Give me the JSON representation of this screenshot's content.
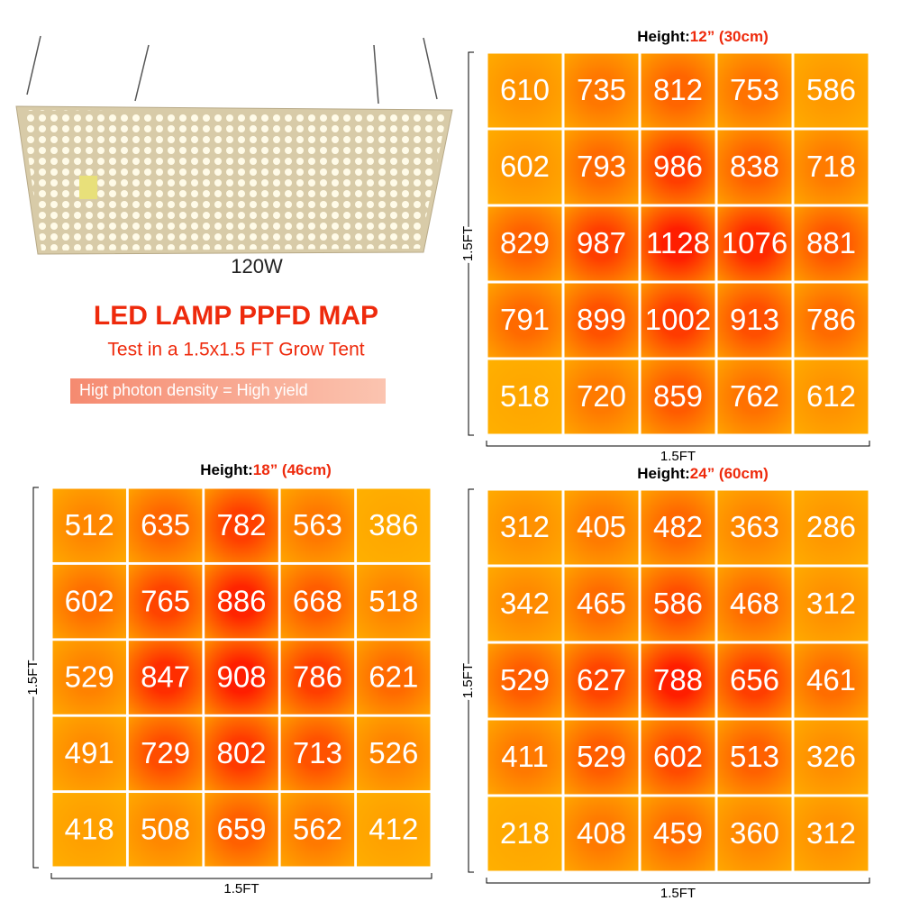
{
  "product": {
    "wattage": "120W"
  },
  "header": {
    "title": "LED LAMP PPFD MAP",
    "subtitle": "Test in a 1.5x1.5 FT Grow Tent",
    "tagline": "Higt photon density = High yield"
  },
  "maps": [
    {
      "label": "Height:",
      "height": "12” (30cm)",
      "x_label": "1.5FT",
      "y_label": "1.5FT",
      "rows": [
        [
          610,
          735,
          812,
          753,
          586
        ],
        [
          602,
          793,
          986,
          838,
          718
        ],
        [
          829,
          987,
          1128,
          1076,
          881
        ],
        [
          791,
          899,
          1002,
          913,
          786
        ],
        [
          518,
          720,
          859,
          762,
          612
        ]
      ]
    },
    {
      "label": "Height:",
      "height": "18” (46cm)",
      "x_label": "1.5FT",
      "y_label": "1.5FT",
      "rows": [
        [
          512,
          635,
          782,
          563,
          386
        ],
        [
          602,
          765,
          886,
          668,
          518
        ],
        [
          529,
          847,
          908,
          786,
          621
        ],
        [
          491,
          729,
          802,
          713,
          526
        ],
        [
          418,
          508,
          659,
          562,
          412
        ]
      ]
    },
    {
      "label": "Height:",
      "height": "24” (60cm)",
      "x_label": "1.5FT",
      "y_label": "1.5FT",
      "rows": [
        [
          312,
          405,
          482,
          363,
          286
        ],
        [
          342,
          465,
          586,
          468,
          312
        ],
        [
          529,
          627,
          788,
          656,
          461
        ],
        [
          411,
          529,
          602,
          513,
          326
        ],
        [
          218,
          408,
          459,
          360,
          312
        ]
      ]
    }
  ]
}
